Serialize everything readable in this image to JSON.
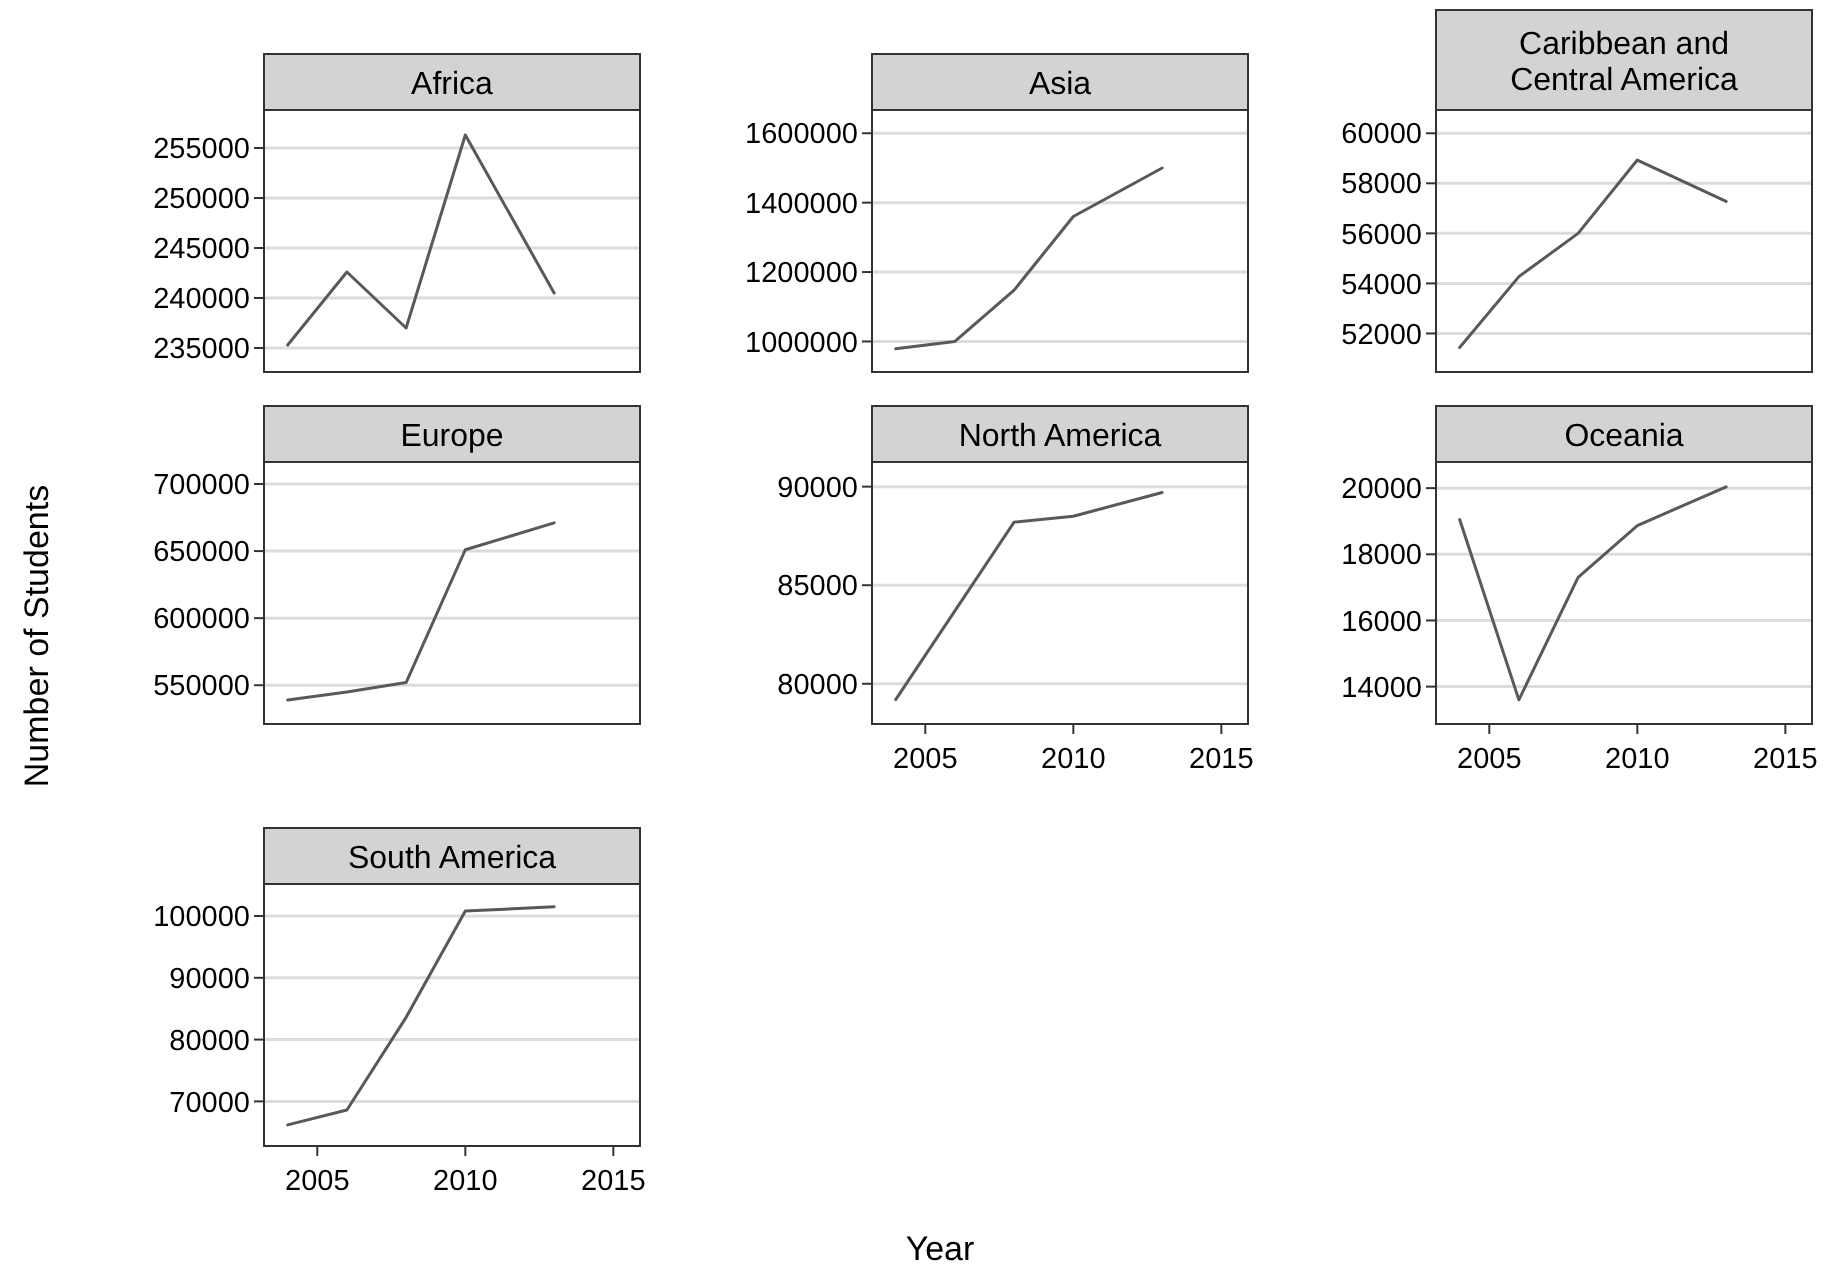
{
  "chart_data": [
    {
      "type": "line",
      "title": "Africa",
      "x": [
        2004,
        2006,
        2008,
        2010,
        2013
      ],
      "values": [
        235300,
        242600,
        237000,
        256300,
        240500
      ],
      "color": "#595959",
      "xlim": [
        2003.2,
        2015.9
      ],
      "ylim": [
        232600,
        258800
      ],
      "yticks": [
        235000,
        240000,
        245000,
        250000,
        255000
      ],
      "grid": "y",
      "tick_labels": "y"
    },
    {
      "type": "line",
      "title": "Asia",
      "x": [
        2004,
        2006,
        2008,
        2010,
        2013
      ],
      "values": [
        979000,
        1000000,
        1148000,
        1360000,
        1500000
      ],
      "color": "#595959",
      "xlim": [
        2003.2,
        2015.9
      ],
      "ylim": [
        912000,
        1667000
      ],
      "yticks": [
        1000000,
        1200000,
        1400000,
        1600000
      ],
      "grid": "y",
      "tick_labels": "y"
    },
    {
      "type": "line",
      "title": "Caribbean and Central America",
      "x": [
        2004,
        2006,
        2008,
        2010,
        2013
      ],
      "values": [
        51440,
        54270,
        56000,
        58930,
        57280
      ],
      "color": "#595959",
      "xlim": [
        2003.2,
        2015.9
      ],
      "ylim": [
        50460,
        60930
      ],
      "yticks": [
        52000,
        54000,
        56000,
        58000,
        60000
      ],
      "grid": "y",
      "tick_labels": "y"
    },
    {
      "type": "line",
      "title": "Europe",
      "ylabel": "Number of Students",
      "x": [
        2004,
        2006,
        2008,
        2010,
        2013
      ],
      "values": [
        539000,
        545000,
        552000,
        651000,
        671000
      ],
      "color": "#595959",
      "xlim": [
        2003.2,
        2015.9
      ],
      "ylim": [
        521100,
        716400
      ],
      "yticks": [
        550000,
        600000,
        650000,
        700000
      ],
      "grid": "y",
      "tick_labels": "y"
    },
    {
      "type": "line",
      "title": "North America",
      "xlabel": "Year",
      "x": [
        2004,
        2006,
        2008,
        2010,
        2013
      ],
      "values": [
        79200,
        83700,
        88200,
        88500,
        89700
      ],
      "color": "#595959",
      "xlim": [
        2003.2,
        2015.9
      ],
      "xticks": [
        2005,
        2010,
        2015
      ],
      "ylim": [
        77960,
        91250
      ],
      "yticks": [
        80000,
        85000,
        90000
      ],
      "grid": "y"
    },
    {
      "type": "line",
      "title": "Oceania",
      "x": [
        2004,
        2006,
        2008,
        2010,
        2013
      ],
      "values": [
        19050,
        13600,
        17300,
        18870,
        20040
      ],
      "color": "#595959",
      "xlim": [
        2003.2,
        2015.9
      ],
      "xticks": [
        2005,
        2010,
        2015
      ],
      "ylim": [
        12870,
        20790
      ],
      "yticks": [
        14000,
        16000,
        18000,
        20000
      ],
      "grid": "y"
    },
    {
      "type": "line",
      "title": "South America",
      "x": [
        2004,
        2006,
        2008,
        2010,
        2013
      ],
      "values": [
        66200,
        68600,
        83600,
        100800,
        101500
      ],
      "color": "#595959",
      "xlim": [
        2003.2,
        2015.9
      ],
      "xticks": [
        2005,
        2010,
        2015
      ],
      "ylim": [
        62780,
        105180
      ],
      "yticks": [
        70000,
        80000,
        90000,
        100000
      ],
      "grid": "y"
    }
  ]
}
